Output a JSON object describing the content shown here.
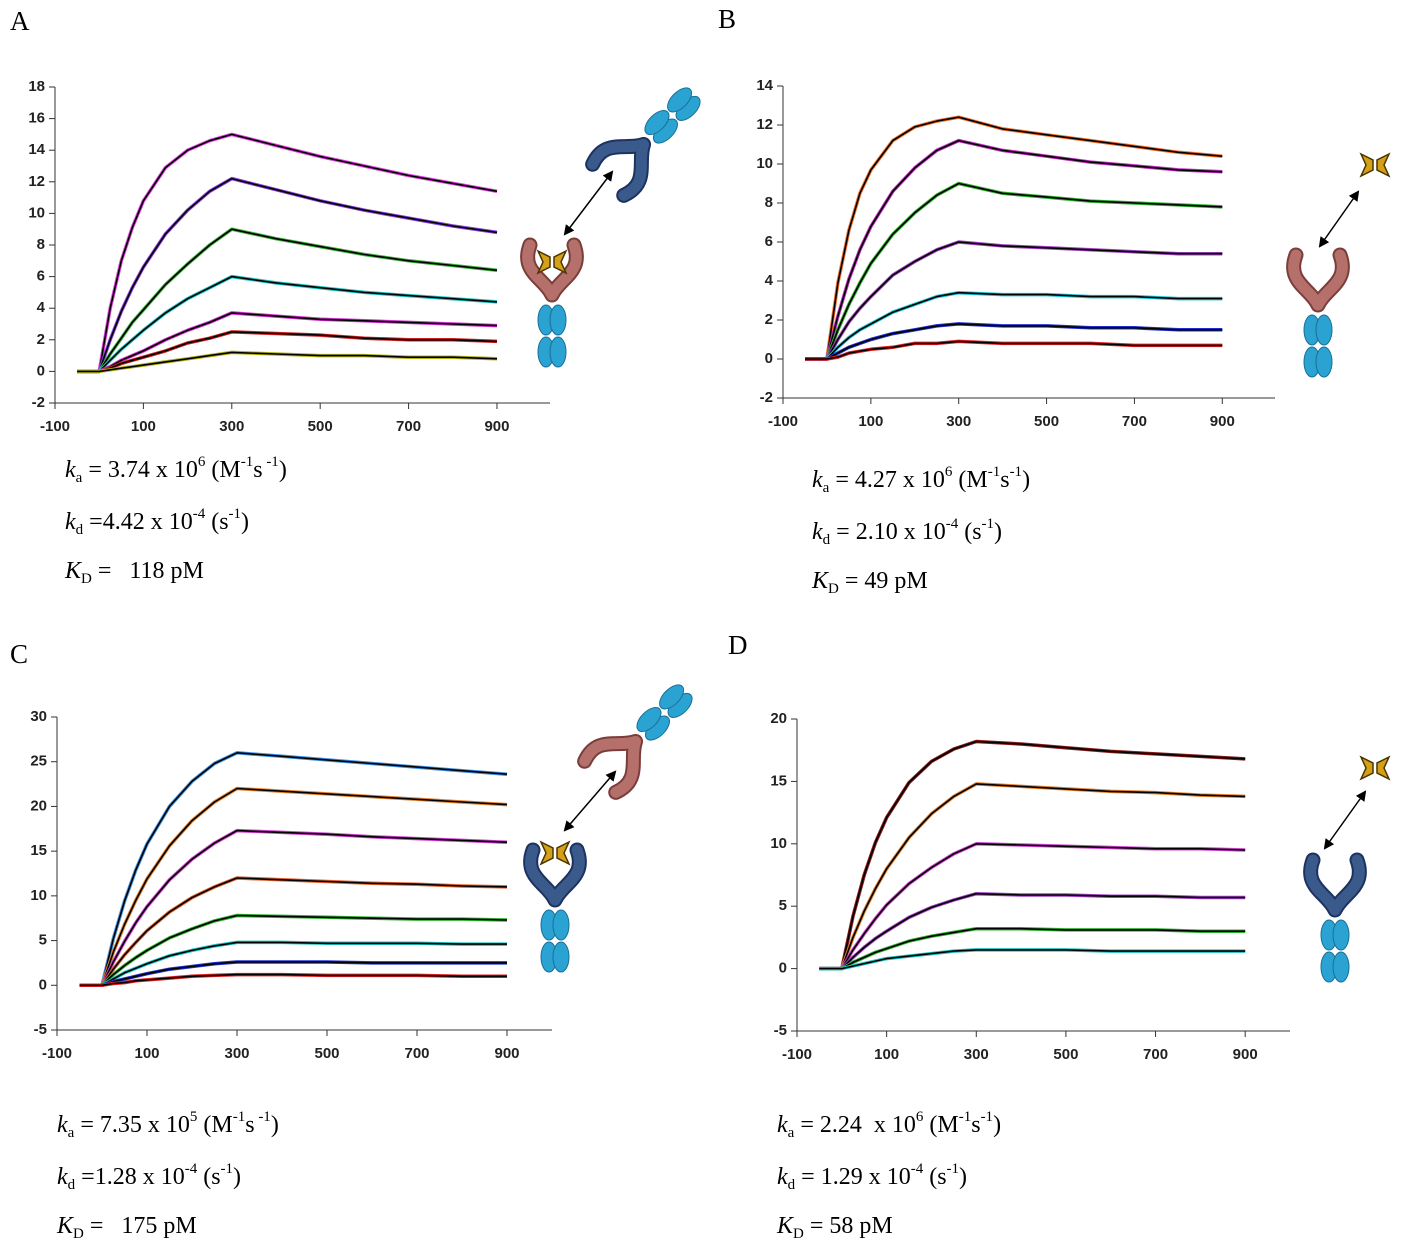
{
  "chart_data": [
    {
      "type": "line",
      "panel_label": "A",
      "xlim": [
        -100,
        1020
      ],
      "ylim": [
        -2,
        18
      ],
      "xticks": [
        -100,
        100,
        300,
        500,
        700,
        900
      ],
      "yticks": [
        -2,
        0,
        2,
        4,
        6,
        8,
        10,
        12,
        14,
        16,
        18
      ],
      "fit_color": "#000000",
      "x": [
        -50,
        0,
        25,
        50,
        75,
        100,
        150,
        200,
        250,
        300,
        400,
        500,
        600,
        700,
        800,
        900
      ],
      "series": [
        {
          "color": "#e040e0",
          "values": [
            0,
            0,
            4.0,
            7.0,
            9.1,
            10.8,
            12.9,
            14.0,
            14.6,
            15.0,
            14.3,
            13.6,
            13.0,
            12.4,
            11.9,
            11.4
          ]
        },
        {
          "color": "#8a40e0",
          "values": [
            0,
            0,
            2.0,
            3.8,
            5.3,
            6.6,
            8.7,
            10.2,
            11.4,
            12.2,
            11.5,
            10.8,
            10.2,
            9.7,
            9.2,
            8.8
          ]
        },
        {
          "color": "#40b040",
          "values": [
            0,
            0,
            1.1,
            2.1,
            3.1,
            3.9,
            5.5,
            6.8,
            8.0,
            9.0,
            8.4,
            7.9,
            7.4,
            7.0,
            6.7,
            6.4
          ]
        },
        {
          "color": "#20c0c0",
          "values": [
            0,
            0,
            0.7,
            1.4,
            2.0,
            2.6,
            3.7,
            4.6,
            5.3,
            6.0,
            5.6,
            5.3,
            5.0,
            4.8,
            4.6,
            4.4
          ]
        },
        {
          "color": "#d030d0",
          "values": [
            0,
            0,
            0.3,
            0.7,
            1.0,
            1.3,
            2.0,
            2.6,
            3.1,
            3.7,
            3.5,
            3.3,
            3.2,
            3.1,
            3.0,
            2.9
          ]
        },
        {
          "color": "#d02020",
          "values": [
            0,
            0,
            0.2,
            0.5,
            0.7,
            0.9,
            1.3,
            1.8,
            2.1,
            2.5,
            2.4,
            2.3,
            2.1,
            2.0,
            2.0,
            1.9
          ]
        },
        {
          "color": "#b0b020",
          "values": [
            0,
            0,
            0.1,
            0.2,
            0.3,
            0.4,
            0.6,
            0.8,
            1.0,
            1.2,
            1.1,
            1.0,
            1.0,
            0.9,
            0.9,
            0.8
          ]
        }
      ],
      "kinetics": [
        [
          {
            "text": "k",
            "style": "italic"
          },
          {
            "text": "a",
            "style": "sub"
          },
          {
            "text": " = 3.74 x 10",
            "style": "plain"
          },
          {
            "text": "6",
            "style": "sup"
          },
          {
            "text": " (M",
            "style": "plain"
          },
          {
            "text": "-1",
            "style": "sup"
          },
          {
            "text": "s",
            "style": "plain"
          },
          {
            "text": " -1",
            "style": "sup"
          },
          {
            "text": ")",
            "style": "plain"
          }
        ],
        [
          {
            "text": "k",
            "style": "italic"
          },
          {
            "text": "d",
            "style": "sub"
          },
          {
            "text": " =4.42 x 10",
            "style": "plain"
          },
          {
            "text": "-4",
            "style": "sup"
          },
          {
            "text": " (s",
            "style": "plain"
          },
          {
            "text": "-1",
            "style": "sup"
          },
          {
            "text": ")",
            "style": "plain"
          }
        ],
        [
          {
            "text": "K",
            "style": "italic"
          },
          {
            "text": "D",
            "style": "sub"
          },
          {
            "text": " =   118 pM",
            "style": "plain"
          }
        ]
      ]
    },
    {
      "type": "line",
      "panel_label": "B",
      "xlim": [
        -100,
        1020
      ],
      "ylim": [
        -2,
        14
      ],
      "xticks": [
        -100,
        100,
        300,
        500,
        700,
        900
      ],
      "yticks": [
        -2,
        0,
        2,
        4,
        6,
        8,
        10,
        12,
        14
      ],
      "fit_color": "#000000",
      "x": [
        -50,
        0,
        25,
        50,
        75,
        100,
        150,
        200,
        250,
        300,
        400,
        500,
        600,
        700,
        800,
        900
      ],
      "series": [
        {
          "color": "#f07030",
          "values": [
            0,
            0,
            3.9,
            6.6,
            8.5,
            9.7,
            11.2,
            11.9,
            12.2,
            12.4,
            11.8,
            11.5,
            11.2,
            10.9,
            10.6,
            10.4
          ]
        },
        {
          "color": "#c030c0",
          "values": [
            0,
            0,
            2.2,
            4.1,
            5.6,
            6.8,
            8.6,
            9.8,
            10.7,
            11.2,
            10.7,
            10.4,
            10.1,
            9.9,
            9.7,
            9.6
          ]
        },
        {
          "color": "#30b030",
          "values": [
            0,
            0,
            1.5,
            2.8,
            3.9,
            4.9,
            6.4,
            7.5,
            8.4,
            9.0,
            8.5,
            8.3,
            8.1,
            8.0,
            7.9,
            7.8
          ]
        },
        {
          "color": "#a040c0",
          "values": [
            0,
            0,
            1.0,
            1.9,
            2.6,
            3.2,
            4.3,
            5.0,
            5.6,
            6.0,
            5.8,
            5.7,
            5.6,
            5.5,
            5.4,
            5.4
          ]
        },
        {
          "color": "#20c0d0",
          "values": [
            0,
            0,
            0.6,
            1.1,
            1.5,
            1.8,
            2.4,
            2.8,
            3.2,
            3.4,
            3.3,
            3.3,
            3.2,
            3.2,
            3.1,
            3.1
          ]
        },
        {
          "color": "#2030d0",
          "values": [
            0,
            0,
            0.3,
            0.6,
            0.8,
            1.0,
            1.3,
            1.5,
            1.7,
            1.8,
            1.7,
            1.7,
            1.6,
            1.6,
            1.5,
            1.5
          ]
        },
        {
          "color": "#e02020",
          "values": [
            0,
            0,
            0.1,
            0.3,
            0.4,
            0.5,
            0.6,
            0.8,
            0.8,
            0.9,
            0.8,
            0.8,
            0.8,
            0.7,
            0.7,
            0.7
          ]
        }
      ],
      "kinetics": [
        [
          {
            "text": "k",
            "style": "italic"
          },
          {
            "text": "a",
            "style": "sub"
          },
          {
            "text": " = 4.27 x 10",
            "style": "plain"
          },
          {
            "text": "6",
            "style": "sup"
          },
          {
            "text": " (M",
            "style": "plain"
          },
          {
            "text": "-1",
            "style": "sup"
          },
          {
            "text": "s",
            "style": "plain"
          },
          {
            "text": "-1",
            "style": "sup"
          },
          {
            "text": ")",
            "style": "plain"
          }
        ],
        [
          {
            "text": "k",
            "style": "italic"
          },
          {
            "text": "d",
            "style": "sub"
          },
          {
            "text": " = 2.10 x 10",
            "style": "plain"
          },
          {
            "text": "-4",
            "style": "sup"
          },
          {
            "text": " (s",
            "style": "plain"
          },
          {
            "text": "-1",
            "style": "sup"
          },
          {
            "text": ")",
            "style": "plain"
          }
        ],
        [
          {
            "text": "K",
            "style": "italic"
          },
          {
            "text": "D",
            "style": "sub"
          },
          {
            "text": " = 49 pM",
            "style": "plain"
          }
        ]
      ]
    },
    {
      "type": "line",
      "panel_label": "C",
      "xlim": [
        -100,
        1000
      ],
      "ylim": [
        -5,
        30
      ],
      "xticks": [
        -100,
        100,
        300,
        500,
        700,
        900
      ],
      "yticks": [
        -5,
        0,
        5,
        10,
        15,
        20,
        25,
        30
      ],
      "fit_color": "#000000",
      "x": [
        -50,
        0,
        25,
        50,
        75,
        100,
        150,
        200,
        250,
        300,
        400,
        500,
        600,
        700,
        800,
        900
      ],
      "series": [
        {
          "color": "#4090e0",
          "values": [
            0,
            0,
            5.2,
            9.4,
            12.9,
            15.8,
            20.0,
            22.8,
            24.8,
            26.0,
            25.6,
            25.2,
            24.8,
            24.4,
            24.0,
            23.6
          ]
        },
        {
          "color": "#e08030",
          "values": [
            0,
            0,
            3.7,
            6.8,
            9.5,
            11.9,
            15.6,
            18.4,
            20.5,
            22.0,
            21.7,
            21.4,
            21.1,
            20.8,
            20.5,
            20.2
          ]
        },
        {
          "color": "#d040d0",
          "values": [
            0,
            0,
            2.6,
            4.9,
            7.0,
            8.8,
            11.8,
            14.1,
            15.9,
            17.3,
            17.1,
            16.9,
            16.6,
            16.4,
            16.2,
            16.0
          ]
        },
        {
          "color": "#e06030",
          "values": [
            0,
            0,
            1.8,
            3.4,
            4.8,
            6.1,
            8.2,
            9.8,
            11.0,
            12.0,
            11.8,
            11.6,
            11.4,
            11.3,
            11.1,
            11.0
          ]
        },
        {
          "color": "#30b030",
          "values": [
            0,
            0,
            1.2,
            2.2,
            3.1,
            3.9,
            5.3,
            6.3,
            7.2,
            7.8,
            7.7,
            7.6,
            7.5,
            7.4,
            7.4,
            7.3
          ]
        },
        {
          "color": "#20c0c0",
          "values": [
            0,
            0,
            0.7,
            1.4,
            1.9,
            2.4,
            3.3,
            3.9,
            4.4,
            4.8,
            4.8,
            4.7,
            4.7,
            4.7,
            4.6,
            4.6
          ]
        },
        {
          "color": "#2030d0",
          "values": [
            0,
            0,
            0.4,
            0.7,
            1.0,
            1.3,
            1.8,
            2.1,
            2.4,
            2.6,
            2.6,
            2.6,
            2.5,
            2.5,
            2.5,
            2.5
          ]
        },
        {
          "color": "#e02020",
          "values": [
            0,
            0,
            0.2,
            0.3,
            0.5,
            0.6,
            0.8,
            1.0,
            1.1,
            1.2,
            1.2,
            1.1,
            1.1,
            1.1,
            1.0,
            1.0
          ]
        }
      ],
      "kinetics": [
        [
          {
            "text": "k",
            "style": "italic"
          },
          {
            "text": "a",
            "style": "sub"
          },
          {
            "text": " = 7.35 x 10",
            "style": "plain"
          },
          {
            "text": "5",
            "style": "sup"
          },
          {
            "text": " (M",
            "style": "plain"
          },
          {
            "text": "-1",
            "style": "sup"
          },
          {
            "text": "s",
            "style": "plain"
          },
          {
            "text": " -1",
            "style": "sup"
          },
          {
            "text": ")",
            "style": "plain"
          }
        ],
        [
          {
            "text": "k",
            "style": "italic"
          },
          {
            "text": "d",
            "style": "sub"
          },
          {
            "text": " =1.28 x 10",
            "style": "plain"
          },
          {
            "text": "-4",
            "style": "sup"
          },
          {
            "text": " (s",
            "style": "plain"
          },
          {
            "text": "-1",
            "style": "sup"
          },
          {
            "text": ")",
            "style": "plain"
          }
        ],
        [
          {
            "text": "K",
            "style": "italic"
          },
          {
            "text": "D",
            "style": "sub"
          },
          {
            "text": " =   175 pM",
            "style": "plain"
          }
        ]
      ]
    },
    {
      "type": "line",
      "panel_label": "D",
      "xlim": [
        -100,
        1000
      ],
      "ylim": [
        -5,
        20
      ],
      "xticks": [
        -100,
        100,
        300,
        500,
        700,
        900
      ],
      "yticks": [
        -5,
        0,
        5,
        10,
        15,
        20
      ],
      "fit_color": "#000000",
      "x": [
        -50,
        0,
        25,
        50,
        75,
        100,
        150,
        200,
        250,
        300,
        400,
        500,
        600,
        700,
        800,
        900
      ],
      "series": [
        {
          "color": "#8b1a1a",
          "values": [
            0,
            0,
            4.2,
            7.5,
            10.1,
            12.1,
            14.9,
            16.6,
            17.6,
            18.2,
            18.0,
            17.7,
            17.4,
            17.2,
            17.0,
            16.8
          ]
        },
        {
          "color": "#e08030",
          "values": [
            0,
            0,
            2.5,
            4.6,
            6.4,
            8.0,
            10.5,
            12.4,
            13.8,
            14.8,
            14.6,
            14.4,
            14.2,
            14.1,
            13.9,
            13.8
          ]
        },
        {
          "color": "#d040d0",
          "values": [
            0,
            0,
            1.5,
            2.8,
            4.0,
            5.1,
            6.8,
            8.1,
            9.2,
            10.0,
            9.9,
            9.8,
            9.7,
            9.6,
            9.6,
            9.5
          ]
        },
        {
          "color": "#a040c0",
          "values": [
            0,
            0,
            0.9,
            1.7,
            2.4,
            3.0,
            4.1,
            4.9,
            5.5,
            6.0,
            5.9,
            5.9,
            5.8,
            5.8,
            5.7,
            5.7
          ]
        },
        {
          "color": "#30b030",
          "values": [
            0,
            0,
            0.5,
            0.9,
            1.3,
            1.6,
            2.2,
            2.6,
            2.9,
            3.2,
            3.2,
            3.1,
            3.1,
            3.1,
            3.0,
            3.0
          ]
        },
        {
          "color": "#20c0c0",
          "values": [
            0,
            0,
            0.2,
            0.4,
            0.6,
            0.8,
            1.0,
            1.2,
            1.4,
            1.5,
            1.5,
            1.5,
            1.4,
            1.4,
            1.4,
            1.4
          ]
        }
      ],
      "kinetics": [
        [
          {
            "text": "k",
            "style": "italic"
          },
          {
            "text": "a",
            "style": "sub"
          },
          {
            "text": " = 2.24  x 10",
            "style": "plain"
          },
          {
            "text": "6",
            "style": "sup"
          },
          {
            "text": " (M",
            "style": "plain"
          },
          {
            "text": "-1",
            "style": "sup"
          },
          {
            "text": "s",
            "style": "plain"
          },
          {
            "text": "-1",
            "style": "sup"
          },
          {
            "text": ")",
            "style": "plain"
          }
        ],
        [
          {
            "text": "k",
            "style": "italic"
          },
          {
            "text": "d",
            "style": "sub"
          },
          {
            "text": " = 1.29 x 10",
            "style": "plain"
          },
          {
            "text": "-4",
            "style": "sup"
          },
          {
            "text": " (s",
            "style": "plain"
          },
          {
            "text": "-1",
            "style": "sup"
          },
          {
            "text": ")",
            "style": "plain"
          }
        ],
        [
          {
            "text": "K",
            "style": "italic"
          },
          {
            "text": "D",
            "style": "sub"
          },
          {
            "text": " = 58 pM",
            "style": "plain"
          }
        ]
      ]
    }
  ]
}
